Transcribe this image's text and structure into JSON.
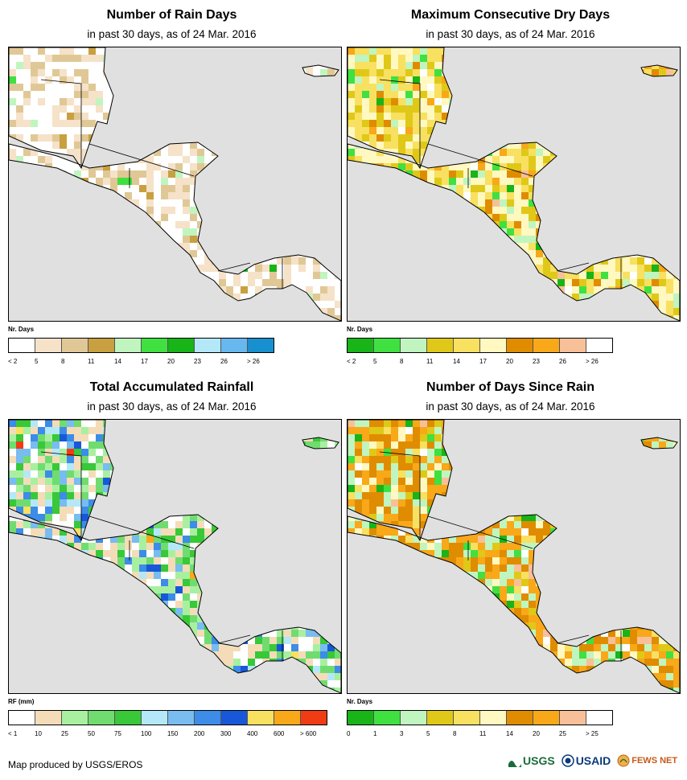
{
  "panels": [
    {
      "title": "Number of Rain Days",
      "subtitle": "in past 30 days, as of 24 Mar. 2016",
      "legend": {
        "title": "Nr. Days",
        "colors": [
          "#ffffff",
          "#f5e2c8",
          "#e0c896",
          "#c8a040",
          "#c0f5c0",
          "#40e040",
          "#18b418",
          "#b4e8f8",
          "#68b8f0",
          "#1890d0"
        ],
        "labels": [
          "< 2",
          "5",
          "8",
          "11",
          "14",
          "17",
          "20",
          "23",
          "26",
          "> 26"
        ]
      },
      "scheme": "raindays"
    },
    {
      "title": "Maximum Consecutive Dry Days",
      "subtitle": "in past 30 days, as of 24 Mar. 2016",
      "legend": {
        "title": "Nr. Days",
        "colors": [
          "#18b418",
          "#40e040",
          "#c0f5c0",
          "#e0c818",
          "#f8e060",
          "#fff8c0",
          "#e08c00",
          "#f8a818",
          "#f8c098",
          "#ffffff"
        ],
        "labels": [
          "< 2",
          "5",
          "8",
          "11",
          "14",
          "17",
          "20",
          "23",
          "26",
          "> 26"
        ]
      },
      "scheme": "drydays"
    },
    {
      "title": "Total Accumulated Rainfall",
      "subtitle": "in past 30 days, as of 24 Mar. 2016",
      "legend": {
        "title": "RF (mm)",
        "colors": [
          "#ffffff",
          "#f5dcb8",
          "#a8f0a0",
          "#70dc70",
          "#38c838",
          "#b4e8f8",
          "#78bcf0",
          "#3c8ce8",
          "#1858d8",
          "#f8e060",
          "#f8a818",
          "#f03c14"
        ],
        "labels": [
          "< 1",
          "10",
          "25",
          "50",
          "75",
          "100",
          "150",
          "200",
          "300",
          "400",
          "600",
          "> 600"
        ]
      },
      "scheme": "rainfall"
    },
    {
      "title": "Number of Days Since Rain",
      "subtitle": "in past 30 days, as of 24 Mar. 2016",
      "legend": {
        "title": "Nr. Days",
        "colors": [
          "#18b418",
          "#40e040",
          "#c0f5c0",
          "#e0c818",
          "#f8e060",
          "#fff8c0",
          "#e08c00",
          "#f8a818",
          "#f8c098",
          "#ffffff"
        ],
        "labels": [
          "0",
          "1",
          "3",
          "5",
          "8",
          "11",
          "14",
          "20",
          "25",
          "> 25"
        ]
      },
      "scheme": "sincerain"
    }
  ],
  "footer": {
    "credit": "Map produced by USGS/EROS",
    "logos": [
      "USGS",
      "USAID",
      "FEWS NET"
    ]
  },
  "icons": [
    "usgs-logo-icon",
    "usaid-seal-icon",
    "fewsnet-logo-icon"
  ]
}
